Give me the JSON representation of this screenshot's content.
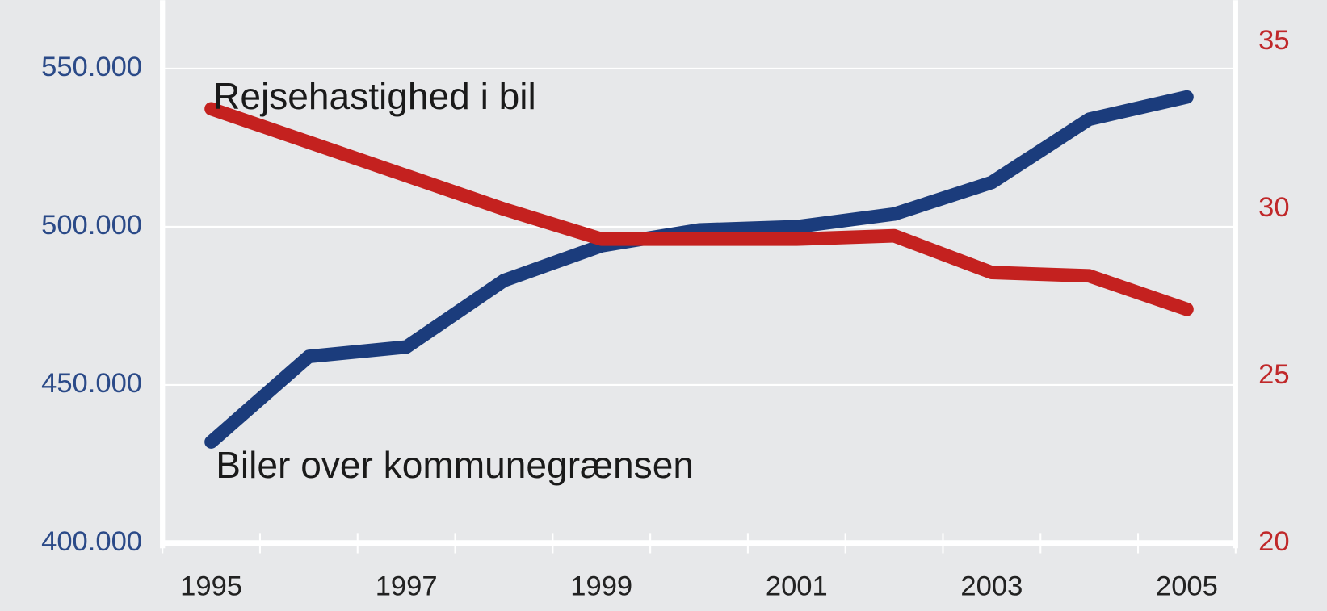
{
  "chart_data": {
    "type": "line",
    "categories": [
      1995,
      null,
      1997,
      null,
      1999,
      null,
      2001,
      null,
      2003,
      null,
      2005
    ],
    "series": [
      {
        "name": "Biler over kommunegrænsen",
        "color": "#1b3c7c",
        "axis": "y",
        "values": [
          432000,
          459000,
          462000,
          483000,
          494000,
          499000,
          500000,
          504000,
          514000,
          534000,
          541000
        ]
      },
      {
        "name": "Rejsehastighed i bil",
        "color": "#c4211f",
        "axis": "y2",
        "values": [
          33.0,
          32.0,
          31.0,
          30.0,
          29.1,
          29.1,
          29.1,
          29.2,
          28.1,
          28.0,
          27.0
        ]
      }
    ],
    "ylim": [
      400000,
      570000
    ],
    "yticks": [
      {
        "value": 400000,
        "label": "400.000"
      },
      {
        "value": 450000,
        "label": "450.000"
      },
      {
        "value": 500000,
        "label": "500.000"
      },
      {
        "value": 550000,
        "label": "550.000"
      }
    ],
    "y2lim": [
      20,
      36.1
    ],
    "y2ticks": [
      20,
      25,
      30,
      35
    ],
    "grid": true
  }
}
